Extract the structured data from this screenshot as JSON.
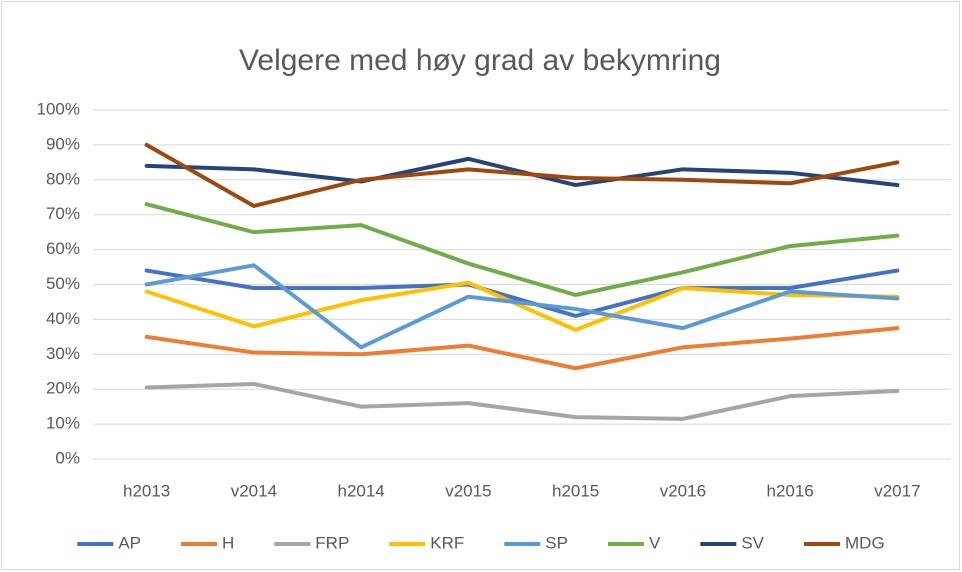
{
  "chart_data": {
    "type": "line",
    "title": "Velgere med høy grad av bekymring",
    "categories": [
      "h2013",
      "v2014",
      "h2014",
      "v2015",
      "h2015",
      "v2016",
      "h2016",
      "v2017"
    ],
    "series": [
      {
        "name": "AP",
        "color": "#4472c4",
        "values": [
          54,
          49,
          49,
          50,
          41,
          49,
          49,
          54
        ]
      },
      {
        "name": "H",
        "color": "#ed7d31",
        "values": [
          35,
          30.5,
          30,
          32.5,
          26,
          32,
          34.5,
          37.5
        ]
      },
      {
        "name": "FRP",
        "color": "#a5a5a5",
        "values": [
          20.5,
          21.5,
          15,
          16,
          12,
          11.5,
          18,
          19.5
        ]
      },
      {
        "name": "KRF",
        "color": "#ffc000",
        "values": [
          48,
          38,
          45.5,
          50.5,
          37,
          49,
          47,
          46.5
        ]
      },
      {
        "name": "SP",
        "color": "#5b9bd5",
        "values": [
          50,
          55.5,
          32,
          46.5,
          43,
          37.5,
          48,
          46
        ]
      },
      {
        "name": "V",
        "color": "#70ad47",
        "values": [
          73,
          65,
          67,
          56,
          47,
          53.5,
          61,
          64
        ]
      },
      {
        "name": "SV",
        "color": "#264478",
        "values": [
          84,
          83,
          79.5,
          86,
          78.5,
          83,
          82,
          78.5
        ]
      },
      {
        "name": "MDG",
        "color": "#9e480e",
        "values": [
          90,
          72.5,
          80,
          83,
          80.5,
          80,
          79,
          85
        ]
      }
    ],
    "ylim": [
      0,
      100
    ],
    "yticks": [
      {
        "value": 0,
        "label": "0%"
      },
      {
        "value": 10,
        "label": "10%"
      },
      {
        "value": 20,
        "label": "20%"
      },
      {
        "value": 30,
        "label": "30%"
      },
      {
        "value": 40,
        "label": "40%"
      },
      {
        "value": 50,
        "label": "50%"
      },
      {
        "value": 60,
        "label": "60%"
      },
      {
        "value": 70,
        "label": "70%"
      },
      {
        "value": 80,
        "label": "80%"
      },
      {
        "value": 90,
        "label": "90%"
      },
      {
        "value": 100,
        "label": "100%"
      }
    ],
    "grid": true,
    "legend": "bottom"
  }
}
